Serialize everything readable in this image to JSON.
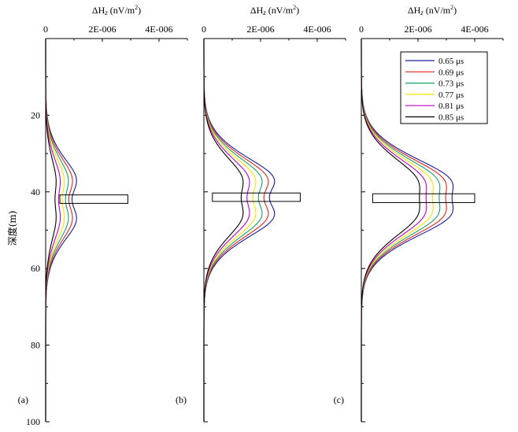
{
  "chart_data": {
    "type": "line",
    "ylabel": "深度(m)",
    "y_ticks": [
      "20",
      "40",
      "60",
      "80",
      "100"
    ],
    "ylim": [
      0,
      100
    ],
    "x_ticks": [
      "0",
      "2E-006",
      "4E-006"
    ],
    "xlim": [
      0,
      5e-06
    ],
    "series_colors": [
      "#1a1a9e",
      "#e0241c",
      "#16a260",
      "#f5e000",
      "#c400c4",
      "#000000"
    ],
    "legend_entries": [
      "0.65 μs",
      "0.69 μs",
      "0.73 μs",
      "0.77 μs",
      "0.81 μs",
      "0.85 μs"
    ],
    "panels": [
      {
        "label": "(a)",
        "xlabel_pre": "ΔH",
        "xlabel_sub": "z",
        "xlabel_unit": " (nV/m",
        "xlabel_sup": "2",
        "xlabel_end": ")",
        "box": {
          "x": [
            5e-07,
            2.9e-06
          ],
          "y": [
            40.8,
            43.0
          ]
        },
        "peaks": [
          1.5e-06,
          1.3e-06,
          1.1e-06,
          9e-07,
          7e-07,
          5e-07
        ],
        "center": 42,
        "sigma": 8.5,
        "dip_depth": 0.38,
        "dip_width": 3.5
      },
      {
        "label": "(b)",
        "xlabel_pre": "ΔH",
        "xlabel_sub": "z",
        "xlabel_unit": " (nV/m",
        "xlabel_sup": "2",
        "xlabel_end": ")",
        "box": {
          "x": [
            3e-07,
            3.4e-06
          ],
          "y": [
            40.3,
            42.5
          ]
        },
        "peaks": [
          3.3e-06,
          3e-06,
          2.7e-06,
          2.4e-06,
          2.1e-06,
          1.8e-06
        ],
        "center": 41.5,
        "sigma": 8.5,
        "dip_depth": 0.3,
        "dip_width": 3.5
      },
      {
        "label": "(c)",
        "xlabel_pre": "ΔH",
        "xlabel_sub": "z",
        "xlabel_unit": " (nV/m",
        "xlabel_sup": "2",
        "xlabel_end": ")",
        "box": {
          "x": [
            4e-07,
            4e-06
          ],
          "y": [
            40.5,
            42.8
          ]
        },
        "peaks": [
          4e-06,
          3.7e-06,
          3.4e-06,
          3.1e-06,
          2.8e-06,
          2.5e-06
        ],
        "center": 41.5,
        "sigma": 8.5,
        "dip_depth": 0.2,
        "dip_width": 3.5
      }
    ]
  }
}
